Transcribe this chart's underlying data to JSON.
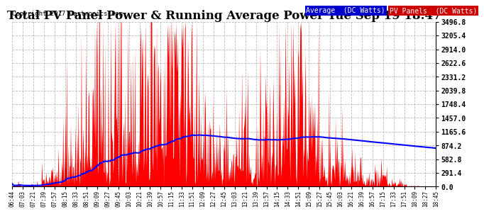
{
  "title": "Total PV Panel Power & Running Average Power Tue Sep 19 18:47",
  "copyright": "Copyright 2017 Cartronics.com",
  "ytick_values": [
    0.0,
    291.4,
    582.8,
    874.2,
    1165.6,
    1457.0,
    1748.4,
    2039.8,
    2331.2,
    2622.6,
    2914.0,
    3205.4,
    3496.8
  ],
  "ytick_labels": [
    "0.0",
    "291.4",
    "582.8",
    "874.2",
    "1165.6",
    "1457.0",
    "1748.4",
    "2039.8",
    "2331.2",
    "2622.6",
    "2914.0",
    "3205.4",
    "3496.8"
  ],
  "ymax": 3496.8,
  "ymin": 0.0,
  "bg_color": "#ffffff",
  "grid_color": "#aaaaaa",
  "fill_color": "#ff0000",
  "line_color": "#0000ff",
  "title_fontsize": 12,
  "xtick_labels": [
    "06:44",
    "07:03",
    "07:21",
    "07:39",
    "07:57",
    "08:15",
    "08:33",
    "08:51",
    "09:09",
    "09:27",
    "09:45",
    "10:03",
    "10:21",
    "10:39",
    "10:57",
    "11:15",
    "11:33",
    "11:51",
    "12:09",
    "12:27",
    "12:45",
    "13:03",
    "13:21",
    "13:39",
    "13:57",
    "14:15",
    "14:33",
    "14:51",
    "15:09",
    "15:27",
    "15:45",
    "16:03",
    "16:21",
    "16:39",
    "16:57",
    "17:15",
    "17:33",
    "17:51",
    "18:09",
    "18:27",
    "18:45"
  ],
  "legend_avg_bg": "#0000cc",
  "legend_pv_bg": "#cc0000",
  "legend_avg_text": "Average  (DC Watts)",
  "legend_pv_text": "PV Panels  (DC Watts)"
}
